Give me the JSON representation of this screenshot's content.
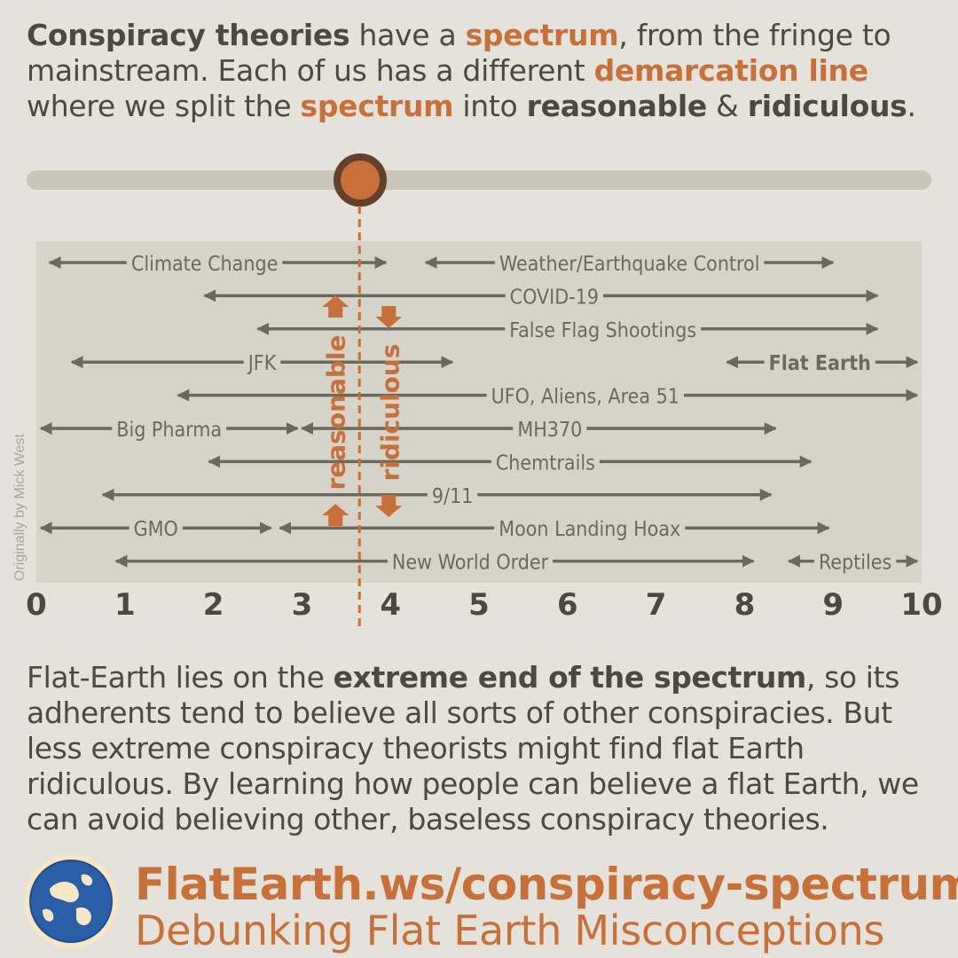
{
  "intro": {
    "t1": "Conspiracy theories",
    "t2": " have a ",
    "t3": "spectrum",
    "t4": ", from the fringe to mainstream. Each of us has a different ",
    "t5": "demarcation line",
    "t6": " where we split the ",
    "t7": "spectrum",
    "t8": " into ",
    "t9": "reasonable",
    "t10": " & ",
    "t11": "ridiculous",
    "t12": "."
  },
  "colors": {
    "accent": "#c8703a",
    "dark": "#63402c",
    "text": "#4b4a3e",
    "arrow": "#6b6a5a",
    "panel": "#d6d3c8",
    "background": "#e4e2da"
  },
  "demarcation": {
    "value": 3.65,
    "left_label": "reasonable",
    "right_label": "ridiculous"
  },
  "chart_data": {
    "type": "range",
    "x_ticks": [
      "0",
      "1",
      "2",
      "3",
      "4",
      "5",
      "6",
      "7",
      "8",
      "9",
      "10"
    ],
    "xlim": [
      0,
      10
    ],
    "ranges": [
      {
        "label": "Climate Change",
        "start": 0.15,
        "end": 3.95,
        "label_pos": 1.9,
        "bold": false
      },
      {
        "label": "Weather/Earthquake Control",
        "start": 4.4,
        "end": 9.0,
        "label_pos": 6.7,
        "bold": false
      },
      {
        "label": "COVID-19",
        "start": 1.9,
        "end": 9.5,
        "label_pos": 5.85,
        "bold": false
      },
      {
        "label": "False Flag Shootings",
        "start": 2.5,
        "end": 9.5,
        "label_pos": 6.4,
        "bold": false
      },
      {
        "label": "JFK",
        "start": 0.4,
        "end": 4.7,
        "label_pos": 2.55,
        "bold": false
      },
      {
        "label": "Flat Earth",
        "start": 7.8,
        "end": 9.95,
        "label_pos": 8.85,
        "bold": true
      },
      {
        "label": "UFO, Aliens, Area 51",
        "start": 1.6,
        "end": 9.95,
        "label_pos": 6.2,
        "bold": false
      },
      {
        "label": "Big Pharma",
        "start": 0.05,
        "end": 2.95,
        "label_pos": 1.5,
        "bold": false
      },
      {
        "label": "MH370",
        "start": 3.0,
        "end": 8.35,
        "label_pos": 5.8,
        "bold": false
      },
      {
        "label": "Chemtrails",
        "start": 1.95,
        "end": 8.75,
        "label_pos": 5.75,
        "bold": false
      },
      {
        "label": "9/11",
        "start": 0.75,
        "end": 8.3,
        "label_pos": 4.7,
        "bold": false
      },
      {
        "label": "GMO",
        "start": 0.05,
        "end": 2.65,
        "label_pos": 1.35,
        "bold": false
      },
      {
        "label": "Moon Landing Hoax",
        "start": 2.75,
        "end": 8.95,
        "label_pos": 6.25,
        "bold": false
      },
      {
        "label": "New World Order",
        "start": 0.9,
        "end": 8.1,
        "label_pos": 4.9,
        "bold": false
      },
      {
        "label": "Reptiles",
        "start": 8.5,
        "end": 9.95,
        "label_pos": 9.25,
        "bold": false
      }
    ]
  },
  "credit": "Originally by Mick West",
  "body": {
    "b1": "Flat-Earth lies on the ",
    "b2": "extreme end of the spectrum",
    "b3": ", so its adherents tend to believe all sorts of other conspiracies. But less extreme conspiracy theorists might find flat Earth ridiculous. By learning how people can believe a flat Earth, we can avoid believing other, baseless conspiracy theories."
  },
  "footer": {
    "url": "FlatEarth.ws/conspiracy-spectrum",
    "subtitle": "Debunking Flat Earth Misconceptions",
    "logo_icon": "globe-icon"
  }
}
